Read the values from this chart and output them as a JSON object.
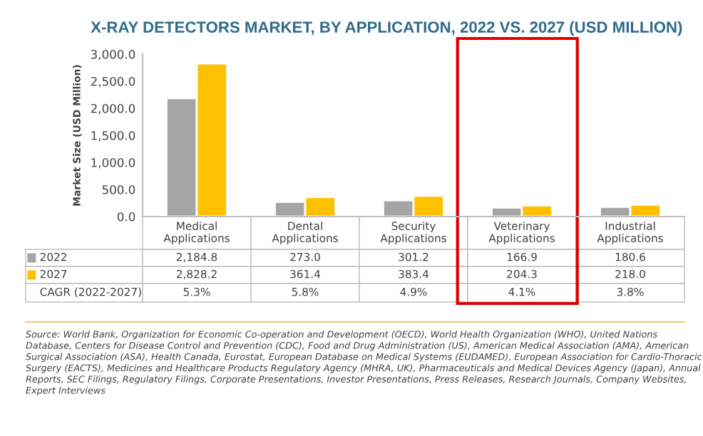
{
  "chart_data": {
    "type": "bar",
    "title": "X-RAY DETECTORS MARKET, BY APPLICATION, 2022 VS. 2027 (USD MILLION)",
    "ylabel": "Market Size (USD Million)",
    "categories": [
      "Medical Applications",
      "Dental Applications",
      "Security Applications",
      "Veterinary Applications",
      "Industrial Applications"
    ],
    "series": [
      {
        "name": "2022",
        "color": "#a5a5a5",
        "values": [
          2184.8,
          273.0,
          301.2,
          166.9,
          180.6
        ],
        "value_labels": [
          "2,184.8",
          "273.0",
          "301.2",
          "166.9",
          "180.6"
        ]
      },
      {
        "name": "2027",
        "color": "#ffc000",
        "values": [
          2828.2,
          361.4,
          383.4,
          204.3,
          218.0
        ],
        "value_labels": [
          "2,828.2",
          "361.4",
          "383.4",
          "204.3",
          "218.0"
        ]
      }
    ],
    "ylim": [
      0,
      3000
    ],
    "yticks": [
      {
        "value": 0,
        "label": "0.0"
      },
      {
        "value": 500,
        "label": "500.0"
      },
      {
        "value": 1000,
        "label": "1,000.0"
      },
      {
        "value": 1500,
        "label": "1,500.0"
      },
      {
        "value": 2000,
        "label": "2,000.0"
      },
      {
        "value": 2500,
        "label": "2,500.0"
      },
      {
        "value": 3000,
        "label": "3,000.0"
      }
    ],
    "grid": false,
    "legend": "bottom left",
    "annotations": [
      "CAGR (2022-2027)",
      "5.3%",
      "5.8%",
      "4.9%",
      "4.1%",
      "3.8%",
      "Source: World Bank, Organization for Economic Co-operation and Development (OECD), World Health Organization (WHO), United Nations Database, Centers for Disease Control and Prevention (CDC), Food and Drug Administration (US), American Medical Association (AMA), American Surgical Association (ASA), Health Canada, Eurostat, European Database on Medical Systems (EUDAMED), European Association for Cardio-Thoracic Surgery (EACTS), Medicines and Healthcare Products Regulatory Agency (MHRA, UK), Pharmaceuticals and Medical Devices Agency (Japan), Annual Reports, SEC Filings, Regulatory Filings, Corporate Presentations, Investor Presentations, Press Releases, Research Journals, Company Websites, Expert Interviews"
    ]
  }
}
